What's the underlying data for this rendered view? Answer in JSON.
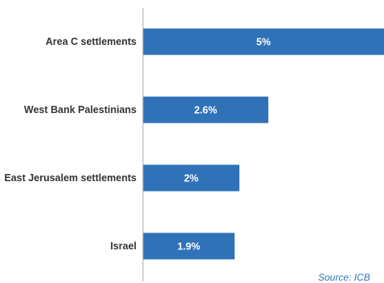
{
  "chart_data": {
    "type": "bar",
    "orientation": "horizontal",
    "categories": [
      "Area C settlements",
      "West Bank Palestinians",
      "East Jerusalem settlements",
      "Israel"
    ],
    "values": [
      5,
      2.6,
      2,
      1.9
    ],
    "value_labels": [
      "5%",
      "2.6%",
      "2%",
      "1.9%"
    ],
    "unit": "%",
    "xlim": [
      0,
      5
    ],
    "grid": false,
    "bar_color": "#2f72b8",
    "axis_color": "#aaaaaa"
  },
  "source": {
    "text": "Source: ICB"
  }
}
